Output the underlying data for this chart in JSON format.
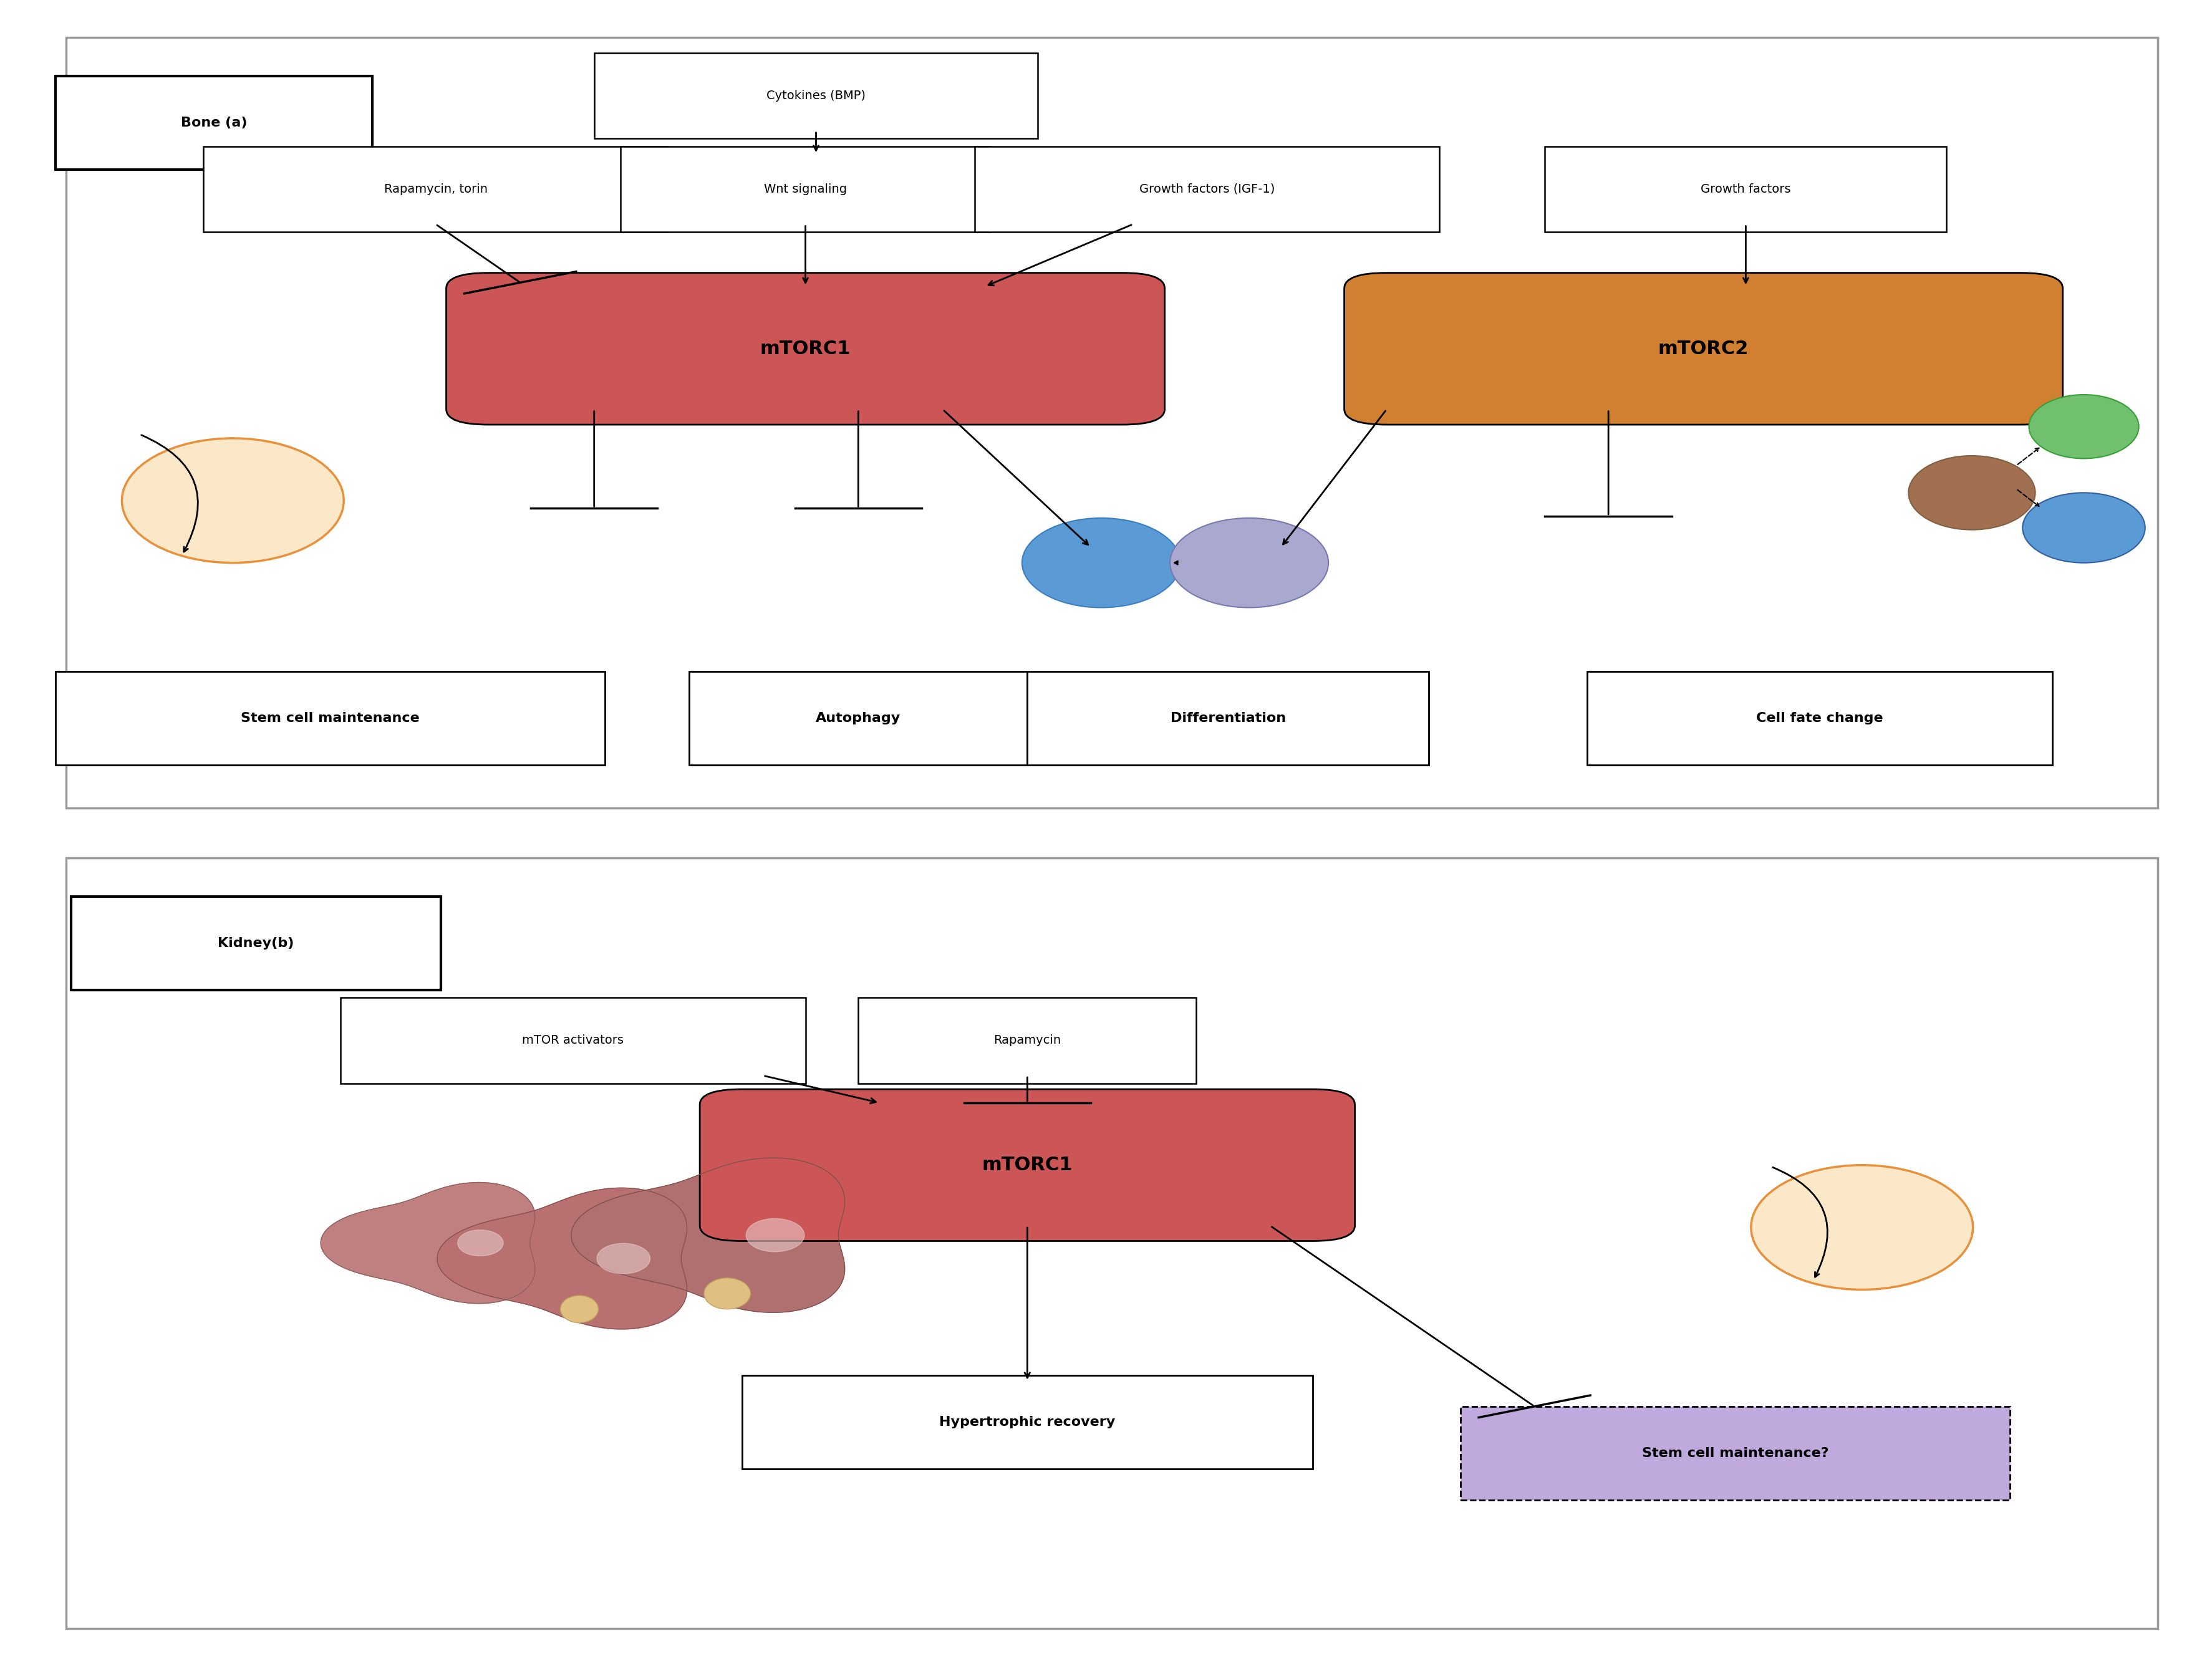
{
  "fig_width": 35.48,
  "fig_height": 26.85,
  "bg_color": "#ffffff",
  "panel_a": {
    "bone_label": "Bone (a)",
    "cytokines_bmp": "Cytokines (BMP)",
    "rapamycin_torin": "Rapamycin, torin",
    "wnt": "Wnt signaling",
    "growth_igf": "Growth factors (IGF-1)",
    "growth_factors": "Growth factors",
    "mtorc1_label": "mTORC1",
    "mtorc1_color": "#CC5555",
    "mtorc2_label": "mTORC2",
    "mtorc2_color": "#D08030",
    "stem_cell_label": "Stem cell maintenance",
    "autophagy_label": "Autophagy",
    "diff_label": "Differentiation",
    "cell_fate_label": "Cell fate change",
    "blue_oval_color": "#5B9BD5",
    "lavender_oval_color": "#A9A9D0",
    "brown_oval_color": "#A07050",
    "green_oval_color": "#70C070",
    "blue_oval2_color": "#5B9BD5",
    "stem_oval_fill": "#FAE8C8",
    "stem_oval_edge": "#E8903A"
  },
  "panel_b": {
    "kidney_label": "Kidney(b)",
    "mtor_act_label": "mTOR activators",
    "rapamycin_label": "Rapamycin",
    "mtorc1_label": "mTORC1",
    "mtorc1_color": "#CC5555",
    "hypertrophic_label": "Hypertrophic recovery",
    "stem_cell_label": "Stem cell maintenance?",
    "stem_cell_bg": "#C0AADD",
    "stem_oval_fill": "#FAE8C8",
    "stem_oval_edge": "#E8903A"
  }
}
